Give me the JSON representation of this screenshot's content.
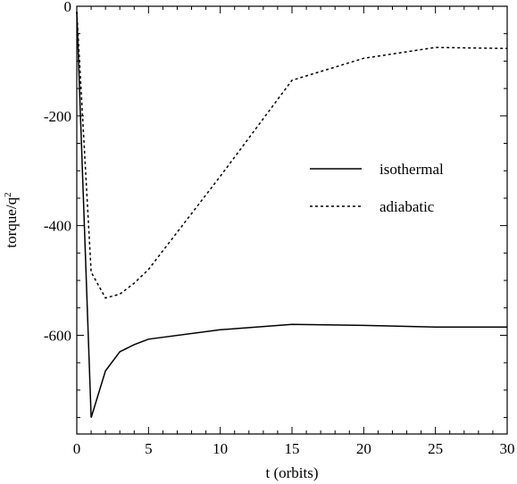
{
  "chart_data": {
    "type": "line",
    "title": "",
    "xlabel": "t (orbits)",
    "ylabel": "torque/q",
    "ylabel_superscript": "2",
    "xlim": [
      0,
      30
    ],
    "ylim": [
      -780,
      0
    ],
    "x_ticks": [
      0,
      5,
      10,
      15,
      20,
      25,
      30
    ],
    "x_tick_labels": [
      "0",
      "5",
      "10",
      "15",
      "20",
      "25",
      "30"
    ],
    "y_ticks": [
      0,
      -200,
      -400,
      -600
    ],
    "y_tick_labels": [
      "0",
      "-200",
      "-400",
      "-600"
    ],
    "grid": false,
    "legend_position": "right-middle",
    "series": [
      {
        "name": "isothermal",
        "style": "solid",
        "color": "#000000",
        "x": [
          0,
          1,
          2,
          3,
          4,
          5,
          10,
          15,
          20,
          25,
          30
        ],
        "y": [
          -10,
          -750,
          -665,
          -630,
          -617,
          -607,
          -590,
          -580,
          -582,
          -585,
          -585
        ]
      },
      {
        "name": "adiabatic",
        "style": "dotted",
        "color": "#000000",
        "x": [
          0,
          1,
          2,
          3,
          4,
          5,
          10,
          15,
          20,
          25,
          30
        ],
        "y": [
          -10,
          -485,
          -532,
          -525,
          -505,
          -480,
          -310,
          -135,
          -95,
          -75,
          -77
        ]
      }
    ]
  }
}
